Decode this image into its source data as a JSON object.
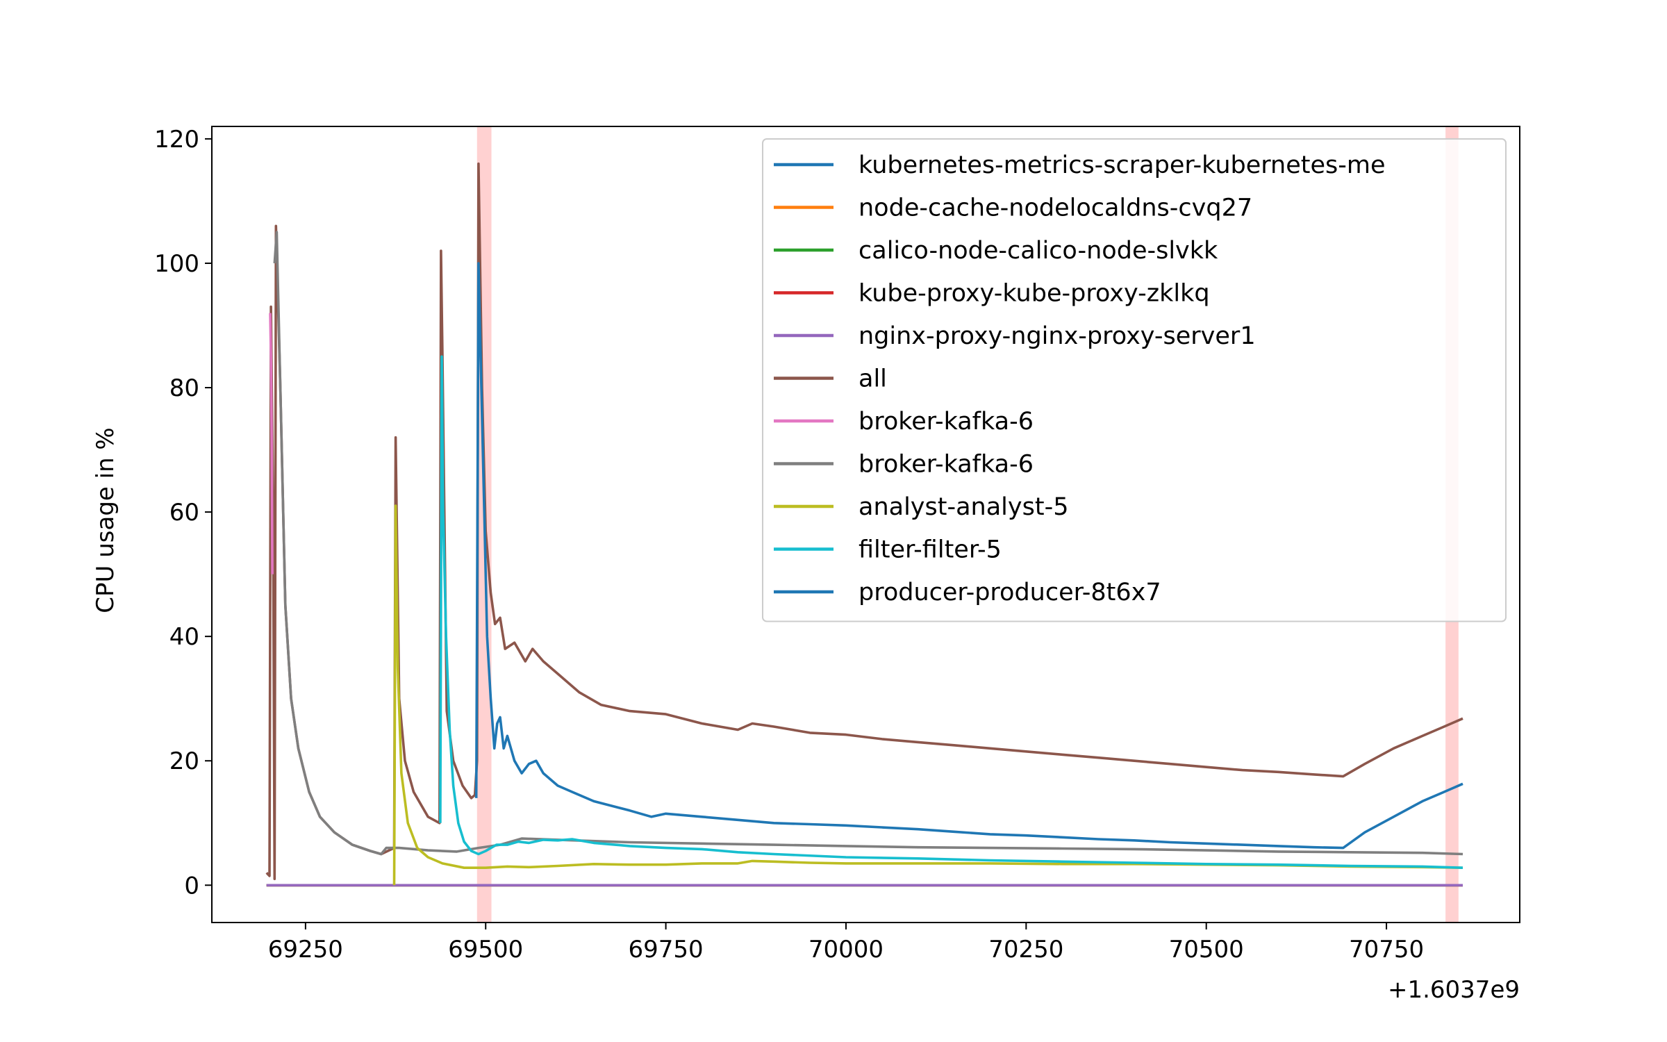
{
  "chart_data": {
    "type": "line",
    "title": "",
    "xlabel": "",
    "ylabel": "CPU usage in %",
    "x_offset_label": "+1.6037e9",
    "xlim": [
      69120,
      70935
    ],
    "ylim": [
      -6,
      122
    ],
    "x_ticks": [
      69250,
      69500,
      69750,
      70000,
      70250,
      70500,
      70750
    ],
    "y_ticks": [
      0,
      20,
      40,
      60,
      80,
      100,
      120
    ],
    "grid": false,
    "legend_position": "upper right",
    "highlight_bands": [
      {
        "x0": 69488,
        "x1": 69508,
        "color": "#ff9999"
      },
      {
        "x0": 70832,
        "x1": 70850,
        "color": "#ff9999"
      }
    ],
    "series": [
      {
        "name": "kubernetes-metrics-scraper-kubernetes-me",
        "color": "#1f77b4",
        "points": [
          [
            69196,
            0
          ],
          [
            70856,
            0
          ]
        ]
      },
      {
        "name": "node-cache-nodelocaldns-cvq27",
        "color": "#ff7f0e",
        "points": [
          [
            69196,
            0
          ],
          [
            70856,
            0
          ]
        ]
      },
      {
        "name": "calico-node-calico-node-slvkk",
        "color": "#2ca02c",
        "points": [
          [
            69196,
            0
          ],
          [
            70856,
            0
          ]
        ]
      },
      {
        "name": "kube-proxy-kube-proxy-zklkq",
        "color": "#d62728",
        "points": [
          [
            69196,
            0
          ],
          [
            70856,
            0
          ]
        ]
      },
      {
        "name": "nginx-proxy-nginx-proxy-server1",
        "color": "#9467bd",
        "points": [
          [
            69196,
            0
          ],
          [
            70856,
            0
          ]
        ]
      },
      {
        "name": "all",
        "color": "#8c564b",
        "points": [
          [
            69196,
            2
          ],
          [
            69200,
            1.5
          ],
          [
            69202,
            93
          ],
          [
            69205,
            60
          ],
          [
            69207,
            1
          ],
          [
            69209,
            106
          ],
          [
            69215,
            80
          ],
          [
            69222,
            45
          ],
          [
            69230,
            30
          ],
          [
            69240,
            22
          ],
          [
            69255,
            15
          ],
          [
            69270,
            11
          ],
          [
            69290,
            8.5
          ],
          [
            69315,
            6.5
          ],
          [
            69340,
            5.5
          ],
          [
            69355,
            5
          ],
          [
            69373,
            6
          ],
          [
            69375,
            72
          ],
          [
            69380,
            30
          ],
          [
            69388,
            20
          ],
          [
            69400,
            15
          ],
          [
            69420,
            11
          ],
          [
            69436,
            10
          ],
          [
            69438,
            102
          ],
          [
            69440,
            85
          ],
          [
            69446,
            28
          ],
          [
            69455,
            20
          ],
          [
            69468,
            16
          ],
          [
            69480,
            14
          ],
          [
            69485,
            14.5
          ],
          [
            69488,
            20
          ],
          [
            69490,
            116
          ],
          [
            69495,
            80
          ],
          [
            69500,
            57
          ],
          [
            69507,
            47
          ],
          [
            69513,
            42
          ],
          [
            69520,
            43
          ],
          [
            69527,
            38
          ],
          [
            69540,
            39
          ],
          [
            69555,
            36
          ],
          [
            69565,
            38
          ],
          [
            69580,
            36
          ],
          [
            69600,
            34
          ],
          [
            69630,
            31
          ],
          [
            69660,
            29
          ],
          [
            69700,
            28
          ],
          [
            69750,
            27.5
          ],
          [
            69800,
            26
          ],
          [
            69850,
            25
          ],
          [
            69870,
            26
          ],
          [
            69900,
            25.5
          ],
          [
            69950,
            24.5
          ],
          [
            70000,
            24.2
          ],
          [
            70050,
            23.5
          ],
          [
            70100,
            23
          ],
          [
            70150,
            22.5
          ],
          [
            70200,
            22
          ],
          [
            70250,
            21.5
          ],
          [
            70300,
            21
          ],
          [
            70350,
            20.5
          ],
          [
            70400,
            20
          ],
          [
            70450,
            19.5
          ],
          [
            70500,
            19
          ],
          [
            70550,
            18.5
          ],
          [
            70600,
            18.2
          ],
          [
            70650,
            17.8
          ],
          [
            70690,
            17.5
          ],
          [
            70720,
            19.5
          ],
          [
            70760,
            22
          ],
          [
            70800,
            24
          ],
          [
            70830,
            25.5
          ],
          [
            70856,
            26.8
          ]
        ]
      },
      {
        "name": "broker-kafka-6",
        "color": "#e377c2",
        "points": [
          [
            69201,
            92
          ],
          [
            69202,
            85
          ],
          [
            69203,
            72
          ],
          [
            69204,
            50
          ]
        ]
      },
      {
        "name": "broker-kafka-6",
        "color": "#7f7f7f",
        "points": [
          [
            69207,
            100
          ],
          [
            69210,
            105
          ],
          [
            69215,
            80
          ],
          [
            69222,
            45
          ],
          [
            69230,
            30
          ],
          [
            69240,
            22
          ],
          [
            69255,
            15
          ],
          [
            69270,
            11
          ],
          [
            69290,
            8.5
          ],
          [
            69315,
            6.5
          ],
          [
            69340,
            5.5
          ],
          [
            69355,
            5
          ],
          [
            69362,
            6
          ],
          [
            69380,
            6
          ],
          [
            69420,
            5.6
          ],
          [
            69460,
            5.4
          ],
          [
            69490,
            6
          ],
          [
            69520,
            6.5
          ],
          [
            69550,
            7.5
          ],
          [
            69600,
            7.3
          ],
          [
            69700,
            6.9
          ],
          [
            69800,
            6.7
          ],
          [
            69900,
            6.5
          ],
          [
            70000,
            6.3
          ],
          [
            70100,
            6.1
          ],
          [
            70200,
            6.0
          ],
          [
            70300,
            5.9
          ],
          [
            70400,
            5.8
          ],
          [
            70500,
            5.6
          ],
          [
            70600,
            5.4
          ],
          [
            70700,
            5.3
          ],
          [
            70800,
            5.2
          ],
          [
            70856,
            5.0
          ]
        ]
      },
      {
        "name": "analyst-analyst-5",
        "color": "#bcbd22",
        "points": [
          [
            69373,
            0
          ],
          [
            69375,
            61
          ],
          [
            69378,
            35
          ],
          [
            69383,
            18
          ],
          [
            69392,
            10
          ],
          [
            69405,
            6
          ],
          [
            69420,
            4.5
          ],
          [
            69440,
            3.5
          ],
          [
            69470,
            2.8
          ],
          [
            69500,
            2.8
          ],
          [
            69530,
            3.0
          ],
          [
            69560,
            2.9
          ],
          [
            69600,
            3.1
          ],
          [
            69650,
            3.4
          ],
          [
            69700,
            3.3
          ],
          [
            69750,
            3.3
          ],
          [
            69800,
            3.5
          ],
          [
            69850,
            3.5
          ],
          [
            69870,
            3.9
          ],
          [
            69900,
            3.8
          ],
          [
            69950,
            3.6
          ],
          [
            70000,
            3.5
          ],
          [
            70100,
            3.5
          ],
          [
            70200,
            3.5
          ],
          [
            70300,
            3.4
          ],
          [
            70400,
            3.4
          ],
          [
            70500,
            3.3
          ],
          [
            70600,
            3.2
          ],
          [
            70700,
            3.0
          ],
          [
            70800,
            2.9
          ],
          [
            70856,
            2.8
          ]
        ]
      },
      {
        "name": "filter-filter-5",
        "color": "#17becf",
        "points": [
          [
            69437,
            10
          ],
          [
            69439,
            85
          ],
          [
            69441,
            60
          ],
          [
            69445,
            40
          ],
          [
            69450,
            25
          ],
          [
            69455,
            16
          ],
          [
            69462,
            10
          ],
          [
            69470,
            7
          ],
          [
            69480,
            5.5
          ],
          [
            69490,
            5
          ],
          [
            69500,
            5.5
          ],
          [
            69515,
            6.5
          ],
          [
            69530,
            6.5
          ],
          [
            69545,
            7
          ],
          [
            69560,
            6.8
          ],
          [
            69580,
            7.3
          ],
          [
            69600,
            7.2
          ],
          [
            69620,
            7.4
          ],
          [
            69650,
            6.8
          ],
          [
            69700,
            6.3
          ],
          [
            69750,
            6.0
          ],
          [
            69800,
            5.8
          ],
          [
            69850,
            5.3
          ],
          [
            69900,
            5.0
          ],
          [
            70000,
            4.5
          ],
          [
            70100,
            4.3
          ],
          [
            70200,
            4.0
          ],
          [
            70300,
            3.8
          ],
          [
            70400,
            3.6
          ],
          [
            70500,
            3.4
          ],
          [
            70600,
            3.3
          ],
          [
            70700,
            3.1
          ],
          [
            70800,
            3.0
          ],
          [
            70856,
            2.8
          ]
        ]
      },
      {
        "name": "producer-producer-8t6x7",
        "color": "#1f77b4",
        "points": [
          [
            69487,
            14
          ],
          [
            69490,
            100
          ],
          [
            69494,
            80
          ],
          [
            69498,
            60
          ],
          [
            69502,
            40
          ],
          [
            69507,
            30
          ],
          [
            69512,
            22
          ],
          [
            69516,
            26
          ],
          [
            69520,
            27
          ],
          [
            69525,
            22
          ],
          [
            69530,
            24
          ],
          [
            69540,
            20
          ],
          [
            69550,
            18
          ],
          [
            69560,
            19.5
          ],
          [
            69570,
            20
          ],
          [
            69580,
            18
          ],
          [
            69600,
            16
          ],
          [
            69620,
            15
          ],
          [
            69650,
            13.5
          ],
          [
            69700,
            12
          ],
          [
            69730,
            11
          ],
          [
            69750,
            11.5
          ],
          [
            69800,
            11
          ],
          [
            69850,
            10.5
          ],
          [
            69900,
            10
          ],
          [
            69950,
            9.8
          ],
          [
            70000,
            9.6
          ],
          [
            70050,
            9.3
          ],
          [
            70100,
            9
          ],
          [
            70150,
            8.6
          ],
          [
            70200,
            8.2
          ],
          [
            70250,
            8
          ],
          [
            70300,
            7.7
          ],
          [
            70350,
            7.4
          ],
          [
            70400,
            7.2
          ],
          [
            70450,
            6.9
          ],
          [
            70500,
            6.7
          ],
          [
            70550,
            6.5
          ],
          [
            70600,
            6.3
          ],
          [
            70650,
            6.1
          ],
          [
            70690,
            6.0
          ],
          [
            70720,
            8.5
          ],
          [
            70760,
            11
          ],
          [
            70800,
            13.5
          ],
          [
            70830,
            15
          ],
          [
            70856,
            16.3
          ]
        ]
      }
    ]
  }
}
